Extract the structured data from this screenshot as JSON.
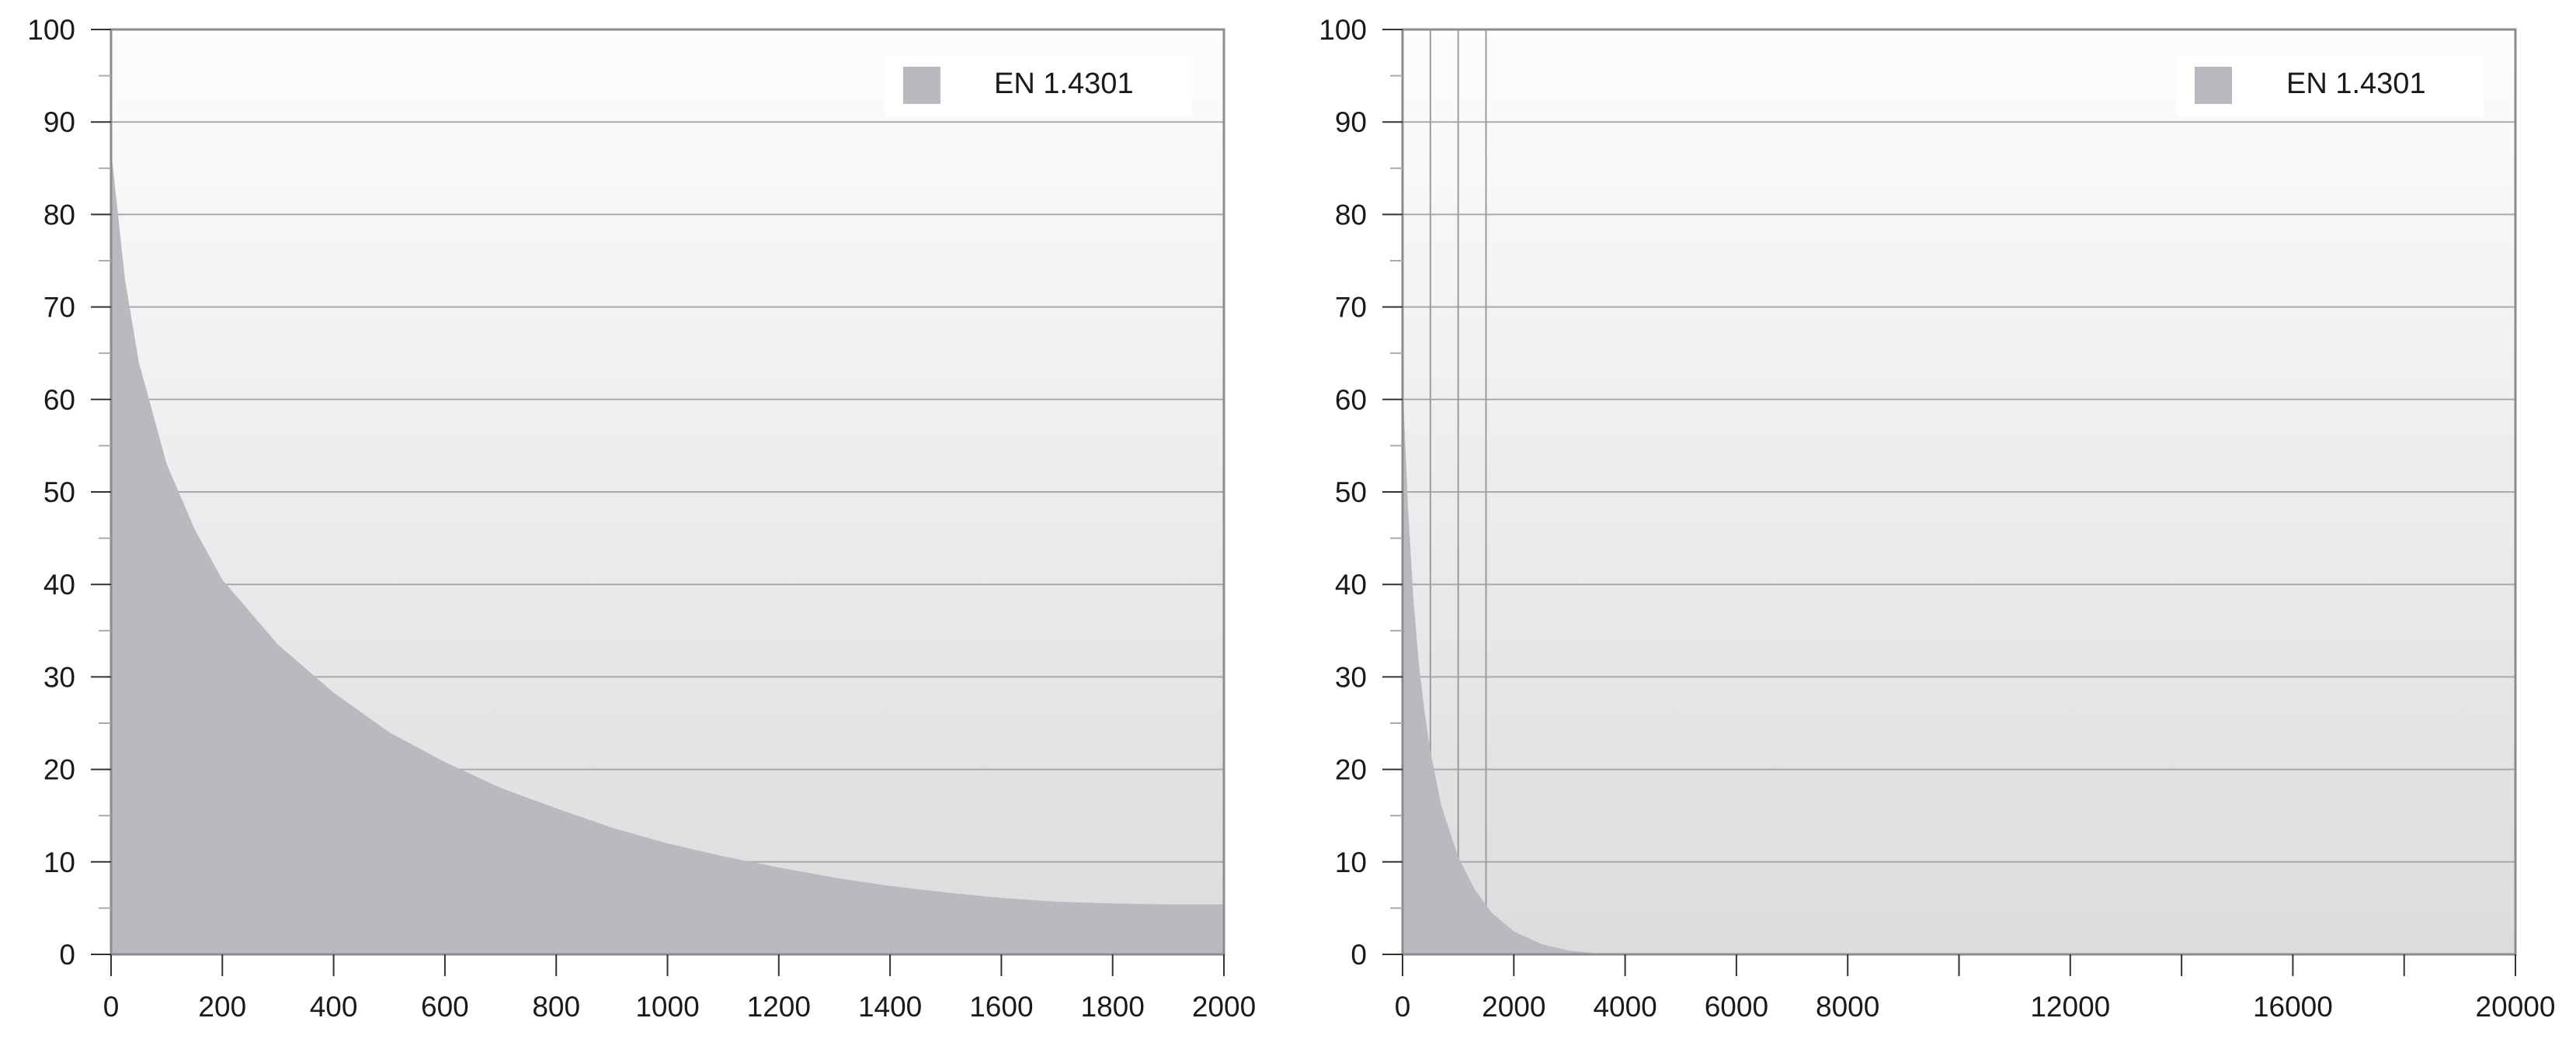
{
  "chart_data": [
    {
      "type": "area",
      "title": "",
      "xlabel": "",
      "ylabel": "",
      "xlim": [
        0,
        2000
      ],
      "ylim": [
        0,
        100
      ],
      "xticks": [
        0,
        200,
        400,
        600,
        800,
        1000,
        1200,
        1400,
        1600,
        1800,
        2000
      ],
      "xtick_labels": [
        "0",
        "200",
        "400",
        "600",
        "800",
        "1000",
        "1200",
        "1400",
        "1600",
        "1800",
        "2000"
      ],
      "yticks": [
        0,
        10,
        20,
        30,
        40,
        50,
        60,
        70,
        80,
        90,
        100
      ],
      "ytick_labels": [
        "0",
        "10",
        "20",
        "30",
        "40",
        "50",
        "60",
        "70",
        "80",
        "90",
        "100"
      ],
      "grid": "horizontal",
      "legend_position": "top-right",
      "series": [
        {
          "name": "EN 1.4301",
          "color": "#bab9bf",
          "x": [
            0,
            25,
            50,
            100,
            150,
            200,
            300,
            400,
            500,
            600,
            700,
            800,
            900,
            1000,
            1100,
            1200,
            1300,
            1400,
            1500,
            1600,
            1700,
            1800,
            1900,
            2000
          ],
          "y": [
            87,
            73,
            64,
            53,
            46,
            40.5,
            33.5,
            28.3,
            24,
            20.8,
            18,
            15.8,
            13.7,
            12,
            10.6,
            9.4,
            8.3,
            7.4,
            6.7,
            6.1,
            5.7,
            5.5,
            5.4,
            5.4
          ]
        }
      ]
    },
    {
      "type": "area",
      "title": "",
      "xlabel": "",
      "ylabel": "",
      "xlim": [
        0,
        20000
      ],
      "ylim": [
        0,
        100
      ],
      "xticks": [
        0,
        2000,
        4000,
        6000,
        8000,
        10000,
        12000,
        14000,
        16000,
        18000,
        20000
      ],
      "xtick_labels": [
        "0",
        "2000",
        "4000",
        "6000",
        "8000",
        "",
        "12000",
        "",
        "16000",
        "",
        "20000"
      ],
      "yticks": [
        0,
        10,
        20,
        30,
        40,
        50,
        60,
        70,
        80,
        90,
        100
      ],
      "ytick_labels": [
        "0",
        "10",
        "20",
        "30",
        "40",
        "50",
        "60",
        "70",
        "80",
        "90",
        "100"
      ],
      "grid": "horizontal",
      "vertical_guides": [
        500,
        1000,
        1500
      ],
      "legend_position": "top-right",
      "series": [
        {
          "name": "EN 1.4301",
          "color": "#bab9bf",
          "x": [
            0,
            100,
            200,
            300,
            400,
            500,
            700,
            1000,
            1300,
            1600,
            2000,
            2500,
            3000,
            3500,
            4000,
            6000,
            10000,
            20000
          ],
          "y": [
            62,
            48,
            38,
            31,
            26,
            22,
            16,
            10.5,
            7,
            4.5,
            2.5,
            1.1,
            0.4,
            0.1,
            0,
            0,
            0,
            0
          ]
        }
      ]
    }
  ]
}
